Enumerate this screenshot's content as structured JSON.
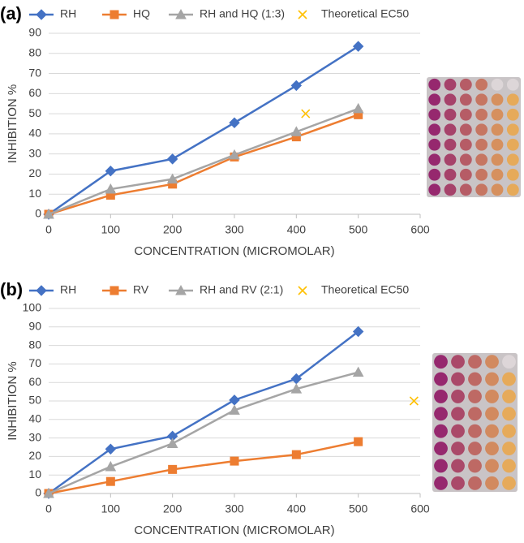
{
  "chart_data": [
    {
      "type": "line",
      "label": "(a)",
      "xlabel": "CONCENTRATION (MICROMOLAR)",
      "ylabel": "INHIBITION %",
      "xlim": [
        0,
        600
      ],
      "xticks": [
        0,
        100,
        200,
        300,
        400,
        500,
        600
      ],
      "ylim": [
        0,
        90
      ],
      "yticks": [
        0,
        10,
        20,
        30,
        40,
        50,
        60,
        70,
        80,
        90
      ],
      "grid": true,
      "legend": "top",
      "series": [
        {
          "name": "RH",
          "color": "#4472c4",
          "marker": "diamond",
          "x": [
            0,
            100,
            200,
            300,
            400,
            500
          ],
          "values": [
            0,
            21.5,
            27.5,
            45.5,
            64,
            83.5
          ]
        },
        {
          "name": "HQ",
          "color": "#ed7d31",
          "marker": "square",
          "x": [
            0,
            100,
            200,
            300,
            400,
            500
          ],
          "values": [
            0,
            9.5,
            15,
            28.5,
            38.5,
            49.5
          ]
        },
        {
          "name": "RH and HQ (1:3)",
          "color": "#a5a5a5",
          "marker": "triangle",
          "x": [
            0,
            100,
            200,
            300,
            400,
            500
          ],
          "values": [
            0,
            12.5,
            17.5,
            29.5,
            41,
            52.5
          ]
        },
        {
          "name": "Theoretical EC50",
          "color": "#ffc000",
          "marker": "x",
          "x": [
            415
          ],
          "values": [
            50
          ]
        }
      ]
    },
    {
      "type": "line",
      "label": "(b)",
      "xlabel": "CONCENTRATION (MICROMOLAR)",
      "ylabel": "INHIBITION %",
      "xlim": [
        0,
        600
      ],
      "xticks": [
        0,
        100,
        200,
        300,
        400,
        500,
        600
      ],
      "ylim": [
        0,
        100
      ],
      "yticks": [
        0,
        10,
        20,
        30,
        40,
        50,
        60,
        70,
        80,
        90,
        100
      ],
      "grid": true,
      "legend": "top",
      "series": [
        {
          "name": "RH",
          "color": "#4472c4",
          "marker": "diamond",
          "x": [
            0,
            100,
            200,
            300,
            400,
            500
          ],
          "values": [
            0,
            24,
            31,
            50.5,
            62,
            87.5
          ]
        },
        {
          "name": "RV",
          "color": "#ed7d31",
          "marker": "square",
          "x": [
            0,
            100,
            200,
            300,
            400,
            500
          ],
          "values": [
            0,
            6.5,
            13,
            17.5,
            21,
            28
          ]
        },
        {
          "name": "RH and RV (2:1)",
          "color": "#a5a5a5",
          "marker": "triangle",
          "x": [
            0,
            100,
            200,
            300,
            400,
            500
          ],
          "values": [
            0,
            14.5,
            27,
            45,
            56.5,
            65.5
          ]
        },
        {
          "name": "Theoretical EC50",
          "color": "#ffc000",
          "marker": "x",
          "x": [
            590
          ],
          "values": [
            50
          ]
        }
      ]
    }
  ]
}
